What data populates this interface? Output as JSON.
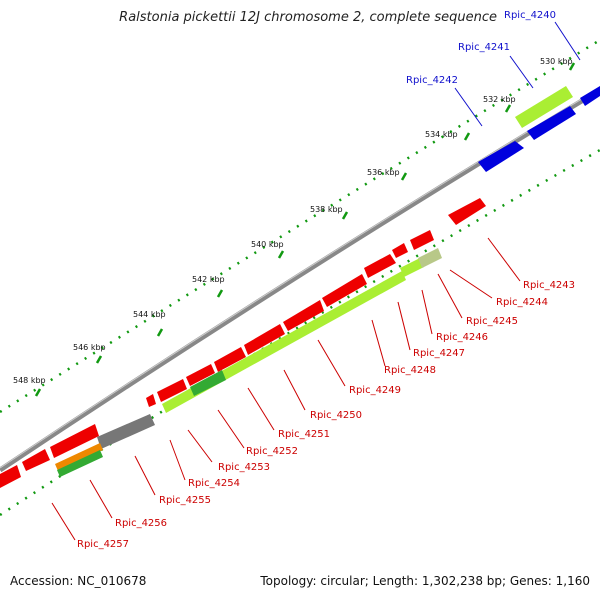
{
  "title": "Ralstonia pickettii 12J chromosome 2, complete sequence",
  "footer": {
    "accession": "Accession: NC_010678",
    "summary": "Topology: circular; Length: 1,302,238 bp; Genes: 1,160"
  },
  "scale_labels": [
    "530 kbp",
    "532 kbp",
    "534 kbp",
    "536 kbp",
    "538 kbp",
    "540 kbp",
    "542 kbp",
    "544 kbp",
    "546 kbp",
    "548 kbp"
  ],
  "gene_labels": {
    "forward": [
      "Rpic_4240",
      "Rpic_4241",
      "Rpic_4242"
    ],
    "reverse": [
      "Rpic_4243",
      "Rpic_4244",
      "Rpic_4245",
      "Rpic_4246",
      "Rpic_4247",
      "Rpic_4248",
      "Rpic_4249",
      "Rpic_4250",
      "Rpic_4251",
      "Rpic_4252",
      "Rpic_4253",
      "Rpic_4254",
      "Rpic_4255",
      "Rpic_4256",
      "Rpic_4257"
    ]
  },
  "colors": {
    "forward_gene": "#0000dd",
    "reverse_gene": "#ee0000",
    "rna_gene": "#aaee33",
    "pseudo_gene": "#777777",
    "other_gene": "#ee8800",
    "backbone": "#888888",
    "dots": "#119911"
  }
}
